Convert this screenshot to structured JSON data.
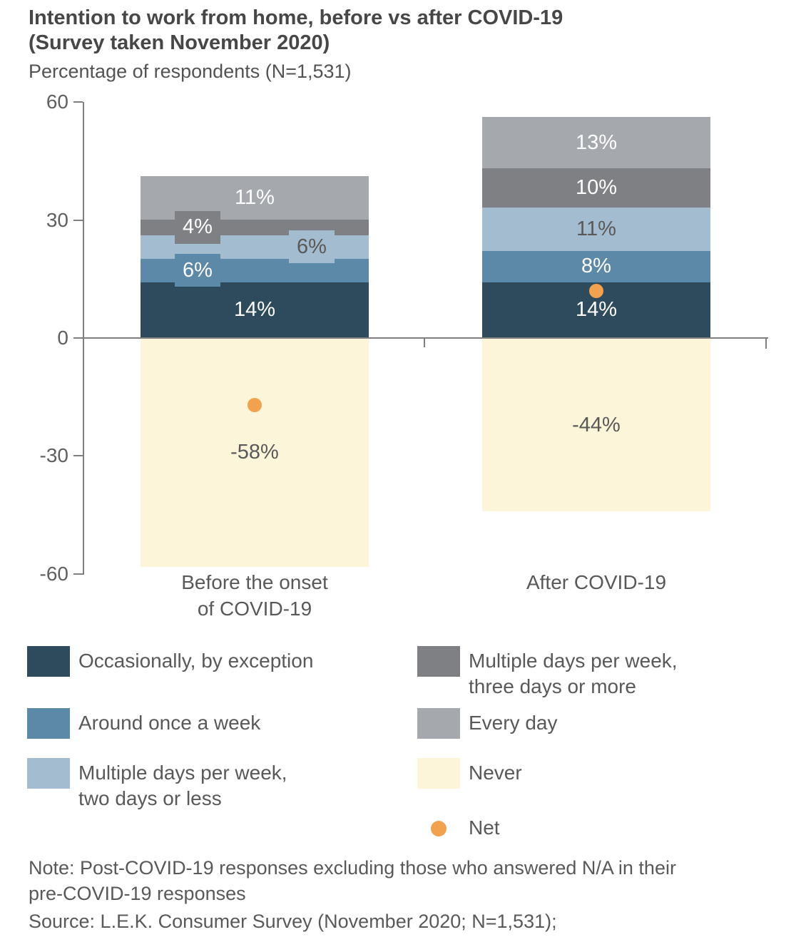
{
  "header": {
    "title_line1": "Intention to work from home, before vs after COVID-19",
    "title_line2": "(Survey taken November 2020)",
    "subtitle": "Percentage of respondents (N=1,531)"
  },
  "chart_data": {
    "type": "stacked-bar",
    "title": "Intention to work from home, before vs after COVID-19 (Survey taken November 2020)",
    "ylabel": "Percentage of respondents (N=1,531)",
    "ylim": [
      -60,
      60
    ],
    "grid": false,
    "legend_position": "bottom",
    "y_axis": {
      "ticks": [
        60,
        30,
        0,
        -30,
        -60
      ],
      "tick_labels": [
        "60",
        "30",
        "0",
        "-30",
        "-60"
      ]
    },
    "categories": [
      "Before the onset\nof COVID-19",
      "After COVID-19"
    ],
    "series": [
      {
        "name": "Occasionally, by exception",
        "color": "#2E4A5D",
        "values": [
          14,
          14
        ],
        "labels": [
          "14%",
          "14%"
        ],
        "label_color": "#ffffff",
        "label_pos": [
          "center",
          "center"
        ]
      },
      {
        "name": "Around once a week",
        "color": "#5C89A7",
        "values": [
          6,
          8
        ],
        "labels": [
          "6%",
          "8%"
        ],
        "label_color": "#ffffff",
        "label_pos": [
          "box-left",
          "center"
        ]
      },
      {
        "name": "Multiple days per week, two days or less",
        "color": "#A4BCD0",
        "values": [
          6,
          11
        ],
        "labels": [
          "6%",
          "11%"
        ],
        "label_color": "#595959",
        "label_pos": [
          "box-right",
          "center"
        ]
      },
      {
        "name": "Multiple days per week, three days or more",
        "color": "#7E8083",
        "values": [
          4,
          10
        ],
        "labels": [
          "4%",
          "10%"
        ],
        "label_color": "#ffffff",
        "label_pos": [
          "box-left",
          "center"
        ]
      },
      {
        "name": "Every day",
        "color": "#A5A8AC",
        "values": [
          11,
          13
        ],
        "labels": [
          "11%",
          "13%"
        ],
        "label_color": "#ffffff",
        "label_pos": [
          "center",
          "center"
        ]
      },
      {
        "name": "Never",
        "color": "#FDF5D9",
        "values": [
          -58,
          -44
        ],
        "labels": [
          "-58%",
          "-44%"
        ],
        "label_color": "#595959",
        "label_pos": [
          "center",
          "center"
        ]
      }
    ],
    "net": {
      "name": "Net",
      "color": "#F2A24E",
      "values": [
        -17,
        12
      ]
    }
  },
  "legend": {
    "columns": [
      {
        "items": [
          {
            "label": "Occasionally, by exception",
            "swatch": "square",
            "color": "#2E4A5D",
            "name": "occasionally-by-exception"
          },
          {
            "label": "Around once a week",
            "swatch": "square",
            "color": "#5C89A7",
            "name": "around-once-a-week"
          },
          {
            "label": "Multiple days per week,\ntwo days or less",
            "swatch": "square",
            "color": "#A4BCD0",
            "name": "multiple-days-two-or-less"
          }
        ]
      },
      {
        "items": [
          {
            "label": "Multiple days per week,\nthree days or more",
            "swatch": "square",
            "color": "#7E8083",
            "name": "multiple-days-three-or-more"
          },
          {
            "label": "Every day",
            "swatch": "square",
            "color": "#A5A8AC",
            "name": "every-day"
          },
          {
            "label": "Never",
            "swatch": "square",
            "color": "#FDF5D9",
            "name": "never"
          },
          {
            "label": "Net",
            "swatch": "dot",
            "color": "#F2A24E",
            "name": "net"
          }
        ]
      }
    ]
  },
  "footnote": {
    "note_line1": "Note: Post-COVID-19 responses excluding those who answered N/A in their",
    "note_line2": "pre-COVID-19 responses",
    "source": "Source: L.E.K. Consumer Survey (November 2020; N=1,531);"
  }
}
